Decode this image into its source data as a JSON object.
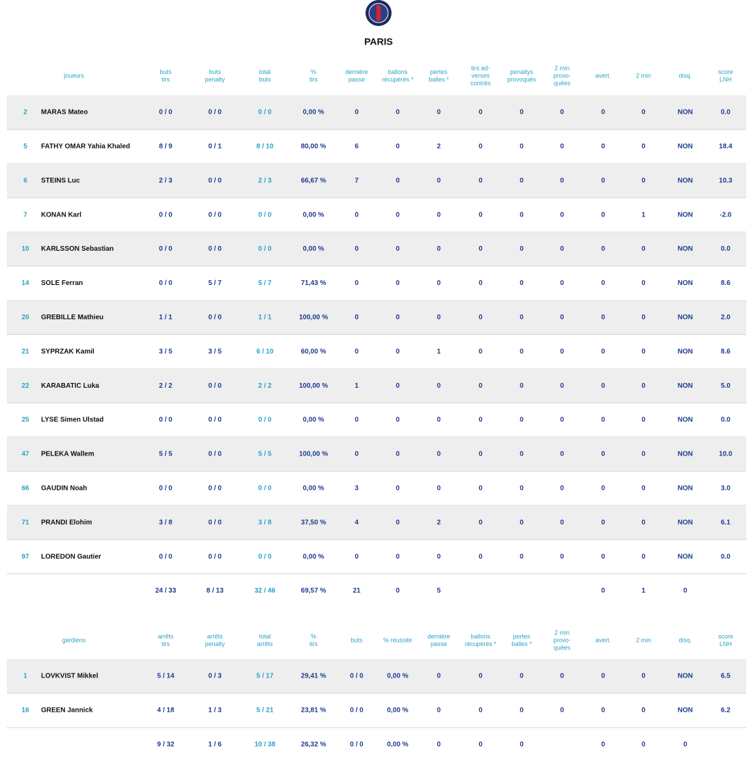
{
  "team": {
    "name": "PARIS"
  },
  "players": {
    "header": [
      [
        "joueurs"
      ],
      [
        "buts",
        "tirs"
      ],
      [
        "buts",
        "penalty"
      ],
      [
        "total",
        "buts"
      ],
      [
        "%",
        "tirs"
      ],
      [
        "dernière",
        "passe"
      ],
      [
        "ballons",
        "récupérés *"
      ],
      [
        "pertes",
        "balles *"
      ],
      [
        "tirs ad-",
        "verses",
        "contrés"
      ],
      [
        "penaltys",
        "provoqués"
      ],
      [
        "2 min",
        "provo-",
        "quées"
      ],
      [
        "avert."
      ],
      [
        "2 min"
      ],
      [
        "disq."
      ],
      [
        "score",
        "LNH"
      ]
    ],
    "rows": [
      [
        "2",
        "MARAS Mateo",
        "0 / 0",
        "0 / 0",
        "0 / 0",
        "0,00 %",
        "0",
        "0",
        "0",
        "0",
        "0",
        "0",
        "0",
        "0",
        "NON",
        "0.0"
      ],
      [
        "5",
        "FATHY OMAR Yahia Khaled",
        "8 / 9",
        "0 / 1",
        "8 / 10",
        "80,00 %",
        "6",
        "0",
        "2",
        "0",
        "0",
        "0",
        "0",
        "0",
        "NON",
        "18.4"
      ],
      [
        "6",
        "STEINS Luc",
        "2 / 3",
        "0 / 0",
        "2 / 3",
        "66,67 %",
        "7",
        "0",
        "0",
        "0",
        "0",
        "0",
        "0",
        "0",
        "NON",
        "10.3"
      ],
      [
        "7",
        "KONAN Karl",
        "0 / 0",
        "0 / 0",
        "0 / 0",
        "0,00 %",
        "0",
        "0",
        "0",
        "0",
        "0",
        "0",
        "0",
        "1",
        "NON",
        "-2.0"
      ],
      [
        "10",
        "KARLSSON Sebastian",
        "0 / 0",
        "0 / 0",
        "0 / 0",
        "0,00 %",
        "0",
        "0",
        "0",
        "0",
        "0",
        "0",
        "0",
        "0",
        "NON",
        "0.0"
      ],
      [
        "14",
        "SOLE Ferran",
        "0 / 0",
        "5 / 7",
        "5 / 7",
        "71,43 %",
        "0",
        "0",
        "0",
        "0",
        "0",
        "0",
        "0",
        "0",
        "NON",
        "8.6"
      ],
      [
        "20",
        "GREBILLE Mathieu",
        "1 / 1",
        "0 / 0",
        "1 / 1",
        "100,00 %",
        "0",
        "0",
        "0",
        "0",
        "0",
        "0",
        "0",
        "0",
        "NON",
        "2.0"
      ],
      [
        "21",
        "SYPRZAK Kamil",
        "3 / 5",
        "3 / 5",
        "6 / 10",
        "60,00 %",
        "0",
        "0",
        "1",
        "0",
        "0",
        "0",
        "0",
        "0",
        "NON",
        "8.6"
      ],
      [
        "22",
        "KARABATIC Luka",
        "2 / 2",
        "0 / 0",
        "2 / 2",
        "100,00 %",
        "1",
        "0",
        "0",
        "0",
        "0",
        "0",
        "0",
        "0",
        "NON",
        "5.0"
      ],
      [
        "25",
        "LYSE Simen Ulstad",
        "0 / 0",
        "0 / 0",
        "0 / 0",
        "0,00 %",
        "0",
        "0",
        "0",
        "0",
        "0",
        "0",
        "0",
        "0",
        "NON",
        "0.0"
      ],
      [
        "47",
        "PELEKA Wallem",
        "5 / 5",
        "0 / 0",
        "5 / 5",
        "100,00 %",
        "0",
        "0",
        "0",
        "0",
        "0",
        "0",
        "0",
        "0",
        "NON",
        "10.0"
      ],
      [
        "66",
        "GAUDIN Noah",
        "0 / 0",
        "0 / 0",
        "0 / 0",
        "0,00 %",
        "3",
        "0",
        "0",
        "0",
        "0",
        "0",
        "0",
        "0",
        "NON",
        "3.0"
      ],
      [
        "71",
        "PRANDI Elohim",
        "3 / 8",
        "0 / 0",
        "3 / 8",
        "37,50 %",
        "4",
        "0",
        "2",
        "0",
        "0",
        "0",
        "0",
        "0",
        "NON",
        "6.1"
      ],
      [
        "97",
        "LOREDON Gautier",
        "0 / 0",
        "0 / 0",
        "0 / 0",
        "0,00 %",
        "0",
        "0",
        "0",
        "0",
        "0",
        "0",
        "0",
        "0",
        "NON",
        "0.0"
      ]
    ],
    "totals": [
      "24 / 33",
      "8 / 13",
      "32 / 46",
      "69,57 %",
      "21",
      "0",
      "5",
      null,
      null,
      null,
      "0",
      "1",
      "0",
      null
    ]
  },
  "goalkeepers": {
    "header": [
      [
        "gardiens"
      ],
      [
        "arrêts",
        "tirs"
      ],
      [
        "arrêts",
        "penalty"
      ],
      [
        "total",
        "arrêts"
      ],
      [
        "%",
        "tirs"
      ],
      [
        "buts"
      ],
      [
        "% réussite"
      ],
      [
        "dernière",
        "passe"
      ],
      [
        "ballons",
        "récupérés *"
      ],
      [
        "pertes",
        "balles *"
      ],
      [
        "2 min",
        "provo-",
        "quées"
      ],
      [
        "avert."
      ],
      [
        "2 min"
      ],
      [
        "disq."
      ],
      [
        "score",
        "LNH"
      ]
    ],
    "rows": [
      [
        "1",
        "LOVKVIST Mikkel",
        "5 / 14",
        "0 / 3",
        "5 / 17",
        "29,41 %",
        "0 / 0",
        "0,00 %",
        "0",
        "0",
        "0",
        "0",
        "0",
        "0",
        "NON",
        "6.5"
      ],
      [
        "16",
        "GREEN Jannick",
        "4 / 18",
        "1 / 3",
        "5 / 21",
        "23,81 %",
        "0 / 0",
        "0,00 %",
        "0",
        "0",
        "0",
        "0",
        "0",
        "0",
        "NON",
        "6.2"
      ]
    ],
    "totals": [
      "9 / 32",
      "1 / 6",
      "10 / 38",
      "26,32 %",
      "0 / 0",
      "0,00 %",
      "0",
      "0",
      "0",
      null,
      "0",
      "0",
      "0",
      null
    ]
  }
}
